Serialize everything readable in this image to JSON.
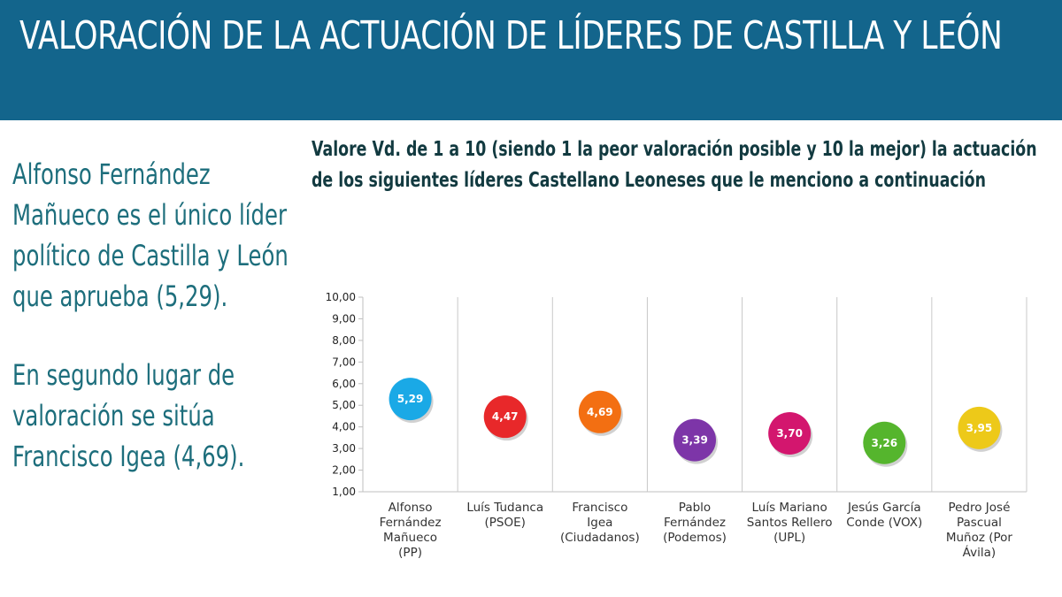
{
  "header": {
    "title": "VALORACIÓN DE LA ACTUACIÓN DE LÍDERES DE CASTILLA Y LEÓN"
  },
  "sidebar": {
    "paragraph_1": "Alfonso Fernández Mañueco es el único líder político de Castilla y León que aprueba (5,29).",
    "paragraph_2": "En segundo lugar de valoración se sitúa Francisco Igea (4,69)."
  },
  "question": "Valore Vd. de 1 a 10 (siendo 1 la peor valoración posible y 10 la mejor) la actuación de los siguientes líderes Castellano Leoneses que le menciono a continuación",
  "chart_data": {
    "type": "scatter",
    "title": "",
    "xlabel": "",
    "ylabel": "",
    "ylim": [
      1,
      10
    ],
    "yticks": [
      "1,00",
      "2,00",
      "3,00",
      "4,00",
      "5,00",
      "6,00",
      "7,00",
      "8,00",
      "9,00",
      "10,00"
    ],
    "grid": "vertical separators between categories",
    "categories": [
      [
        "Alfonso",
        "Fernández",
        "Mañueco",
        "(PP)"
      ],
      [
        "Luís Tudanca",
        "(PSOE)"
      ],
      [
        "Francisco",
        "Igea",
        "(Ciudadanos)"
      ],
      [
        "Pablo",
        "Fernández",
        "(Podemos)"
      ],
      [
        "Luís Mariano",
        "Santos Rellero",
        "(UPL)"
      ],
      [
        "Jesús García",
        "Conde (VOX)"
      ],
      [
        "Pedro José",
        "Pascual",
        "Muñoz (Por",
        "Ávila)"
      ]
    ],
    "values": [
      5.29,
      4.47,
      4.69,
      3.39,
      3.7,
      3.26,
      3.95
    ],
    "value_labels": [
      "5,29",
      "4,47",
      "4,69",
      "3,39",
      "3,70",
      "3,26",
      "3,95"
    ],
    "colors": [
      "#1aa9e6",
      "#e8282a",
      "#f36f12",
      "#7d35a8",
      "#d3166e",
      "#55b52d",
      "#edc919"
    ]
  }
}
